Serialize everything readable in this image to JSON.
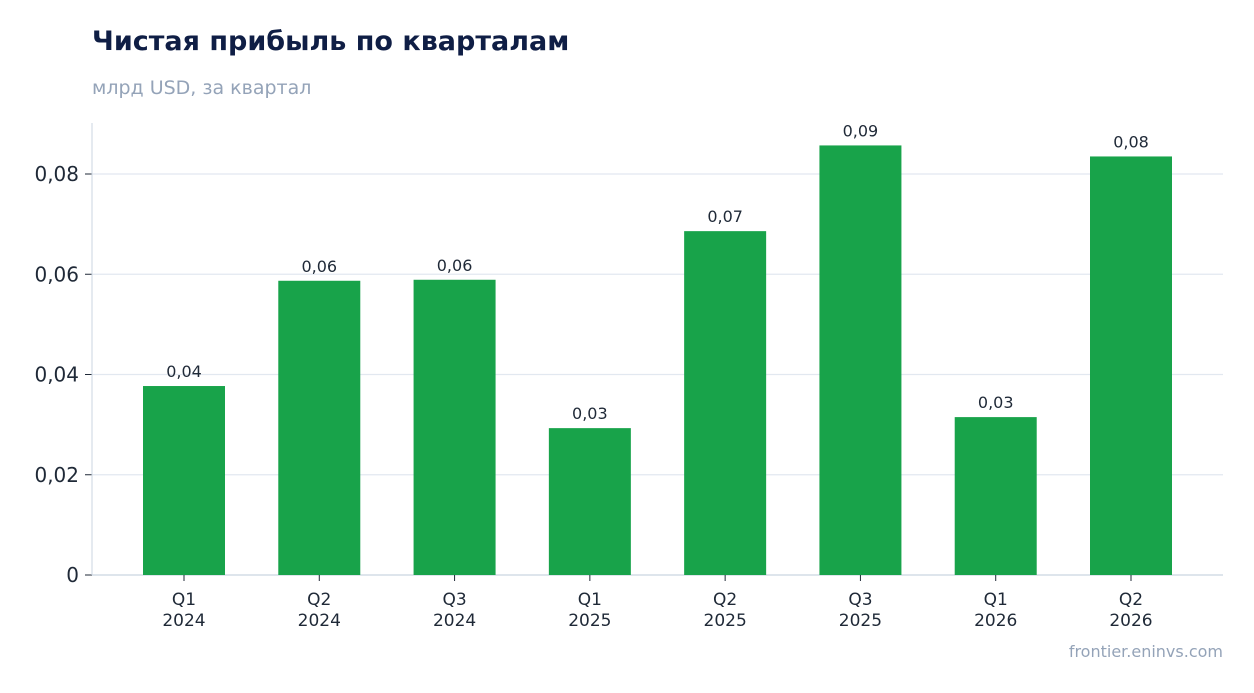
{
  "chart_data": {
    "type": "bar",
    "title": "Чистая прибыль по кварталам",
    "subtitle": "млрд USD, за квартал",
    "xlabel": "",
    "ylabel": "",
    "categories": [
      [
        "Q1",
        "2024"
      ],
      [
        "Q2",
        "2024"
      ],
      [
        "Q3",
        "2024"
      ],
      [
        "Q1",
        "2025"
      ],
      [
        "Q2",
        "2025"
      ],
      [
        "Q3",
        "2025"
      ],
      [
        "Q1",
        "2026"
      ],
      [
        "Q2",
        "2026"
      ]
    ],
    "values": [
      0.0377,
      0.0587,
      0.0589,
      0.0293,
      0.0686,
      0.0857,
      0.0315,
      0.0835
    ],
    "data_labels": [
      "0,04",
      "0,06",
      "0,06",
      "0,03",
      "0,07",
      "0,09",
      "0,03",
      "0,08"
    ],
    "ylim": [
      0,
      0.09
    ],
    "yticks": [
      0,
      0.02,
      0.04,
      0.06,
      0.08
    ],
    "ytick_labels": [
      "0",
      "0,02",
      "0,04",
      "0,06",
      "0,08"
    ],
    "grid": "horizontal",
    "bar_color": "#18a34a",
    "grid_color": "#e2e8f0",
    "axis_color": "#cbd5e1"
  },
  "source": "frontier.eninvs.com"
}
